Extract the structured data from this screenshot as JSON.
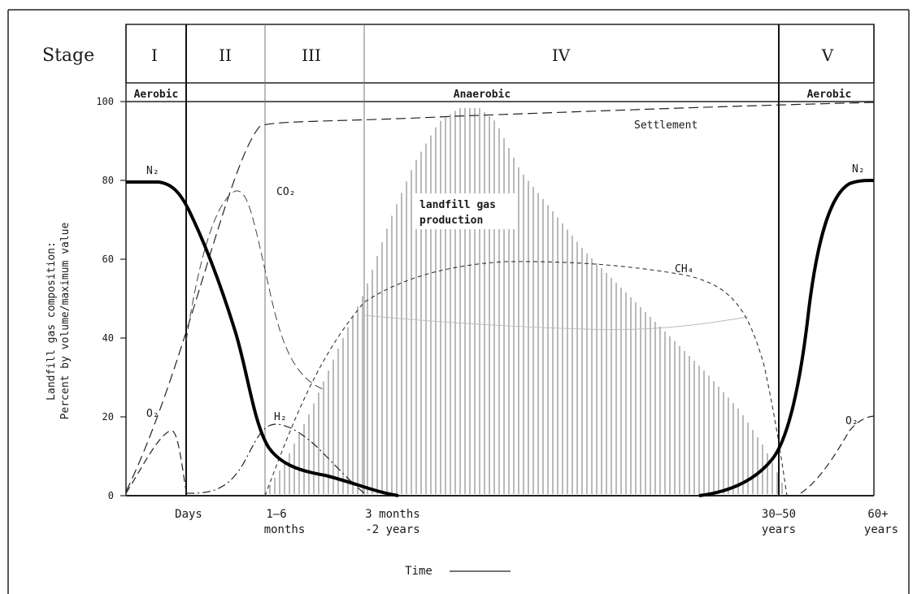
{
  "header": {
    "stage_label": "Stage",
    "stages": [
      "I",
      "II",
      "III",
      "IV",
      "V"
    ]
  },
  "phases": {
    "aerobic_left": "Aerobic",
    "anaerobic": "Anaerobic",
    "aerobic_right": "Aerobic"
  },
  "y_axis": {
    "label_line1": "Landfill gas composition:",
    "label_line2": "Percent by volume/maximum value",
    "ticks": [
      "0",
      "20",
      "40",
      "60",
      "80",
      "100"
    ]
  },
  "x_axis": {
    "label": "Time",
    "ticks": [
      {
        "line1": "Days",
        "line2": ""
      },
      {
        "line1": "1–6",
        "line2": "months"
      },
      {
        "line1": "3 months",
        "line2": "-2 years"
      },
      {
        "line1": "30–50",
        "line2": "years"
      },
      {
        "line1": "60+",
        "line2": "years"
      }
    ]
  },
  "curves": {
    "n2_left": "N₂",
    "n2_right": "N₂",
    "o2_left": "O₂",
    "o2_right": "O₂",
    "co2": "CO₂",
    "ch4": "CH₄",
    "h2": "H₂",
    "settlement": "Settlement",
    "production_line1": "landfill gas",
    "production_line2": "production"
  }
}
